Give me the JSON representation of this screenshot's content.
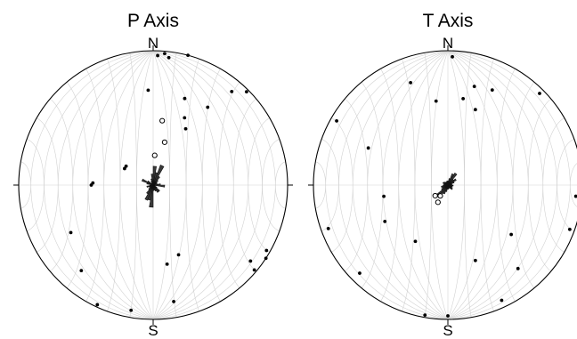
{
  "chart_data": [
    {
      "type": "stereonet",
      "title": "P Axis",
      "north_label": "N",
      "south_label": "S",
      "projection": "equal-area lower hemisphere",
      "grid": true,
      "points": [
        {
          "trend": 2,
          "plunge": 4
        },
        {
          "trend": 5,
          "plunge": 2
        },
        {
          "trend": 7,
          "plunge": 5
        },
        {
          "trend": 15,
          "plunge": 0
        },
        {
          "trend": 20,
          "plunge": 32
        },
        {
          "trend": 25,
          "plunge": 44
        },
        {
          "trend": 30,
          "plunge": 50
        },
        {
          "trend": 35,
          "plunge": 30
        },
        {
          "trend": 40,
          "plunge": 10
        },
        {
          "trend": 45,
          "plunge": 2
        },
        {
          "trend": 357,
          "plunge": 30
        },
        {
          "trend": 120,
          "plunge": 3
        },
        {
          "trend": 123,
          "plunge": 0
        },
        {
          "trend": 128,
          "plunge": 9
        },
        {
          "trend": 130,
          "plunge": 2
        },
        {
          "trend": 160,
          "plunge": 44
        },
        {
          "trend": 170,
          "plunge": 40
        },
        {
          "trend": 170,
          "plunge": 13
        },
        {
          "trend": 190,
          "plunge": 6
        },
        {
          "trend": 205,
          "plunge": 2
        },
        {
          "trend": 220,
          "plunge": 18
        },
        {
          "trend": 240,
          "plunge": 30
        },
        {
          "trend": 270,
          "plunge": 52
        },
        {
          "trend": 272,
          "plunge": 53
        },
        {
          "trend": 300,
          "plunge": 70
        },
        {
          "trend": 305,
          "plunge": 70
        }
      ],
      "mean_points": [
        {
          "trend": 3,
          "plunge": 72
        },
        {
          "trend": 8,
          "plunge": 50
        },
        {
          "trend": 15,
          "plunge": 63
        }
      ],
      "rose_bins_deg": 10,
      "rose_counts": [
        4.4,
        3,
        5,
        2.4,
        1.5,
        1,
        1,
        0.5,
        1.7,
        2.7,
        0.5,
        0.5,
        1,
        2,
        2,
        1.5,
        1.2,
        1.3,
        5.2,
        3.6,
        3.8,
        2.4,
        1.4,
        0.8,
        1,
        1.5,
        0.8,
        0.5,
        1.5,
        2.8,
        1.5,
        0.5,
        0.5,
        1,
        1.5,
        2.6
      ]
    },
    {
      "type": "stereonet",
      "title": "T Axis",
      "north_label": "N",
      "south_label": "S",
      "projection": "equal-area lower hemisphere",
      "grid": true,
      "points": [
        {
          "trend": 2,
          "plunge": 5
        },
        {
          "trend": 10,
          "plunge": 35
        },
        {
          "trend": 15,
          "plunge": 25
        },
        {
          "trend": 20,
          "plunge": 40
        },
        {
          "trend": 25,
          "plunge": 23
        },
        {
          "trend": 45,
          "plunge": 4
        },
        {
          "trend": 90,
          "plunge": 1
        },
        {
          "trend": 95,
          "plunge": 5
        },
        {
          "trend": 110,
          "plunge": 4
        },
        {
          "trend": 128,
          "plunge": 40
        },
        {
          "trend": 140,
          "plunge": 20
        },
        {
          "trend": 155,
          "plunge": 6
        },
        {
          "trend": 160,
          "plunge": 40
        },
        {
          "trend": 180,
          "plunge": 3
        },
        {
          "trend": 190,
          "plunge": 2
        },
        {
          "trend": 210,
          "plunge": 50
        },
        {
          "trend": 225,
          "plunge": 8
        },
        {
          "trend": 240,
          "plunge": 45
        },
        {
          "trend": 250,
          "plunge": 6
        },
        {
          "trend": 260,
          "plunge": 50
        },
        {
          "trend": 295,
          "plunge": 35
        },
        {
          "trend": 300,
          "plunge": 5
        },
        {
          "trend": 340,
          "plunge": 20
        },
        {
          "trend": 352,
          "plunge": 37
        }
      ],
      "mean_points": [
        {
          "trend": 210,
          "plunge": 78
        },
        {
          "trend": 215,
          "plunge": 82
        },
        {
          "trend": 230,
          "plunge": 80
        }
      ],
      "rose_bins_deg": 10,
      "rose_counts": [
        1.5,
        2.5,
        4.5,
        5.2,
        2.8,
        3.6,
        2.5,
        1.5,
        1.5,
        2,
        1.7,
        1.5,
        2,
        2.2,
        1.5,
        1.2,
        1.2,
        1.5,
        1.5,
        2.5,
        3.5,
        3.8,
        5.5,
        2.8,
        2.2,
        2.5,
        1.8,
        1.5,
        1.5,
        2,
        1.8,
        1.5,
        1.2,
        1.2,
        1.5,
        1.5
      ]
    }
  ]
}
